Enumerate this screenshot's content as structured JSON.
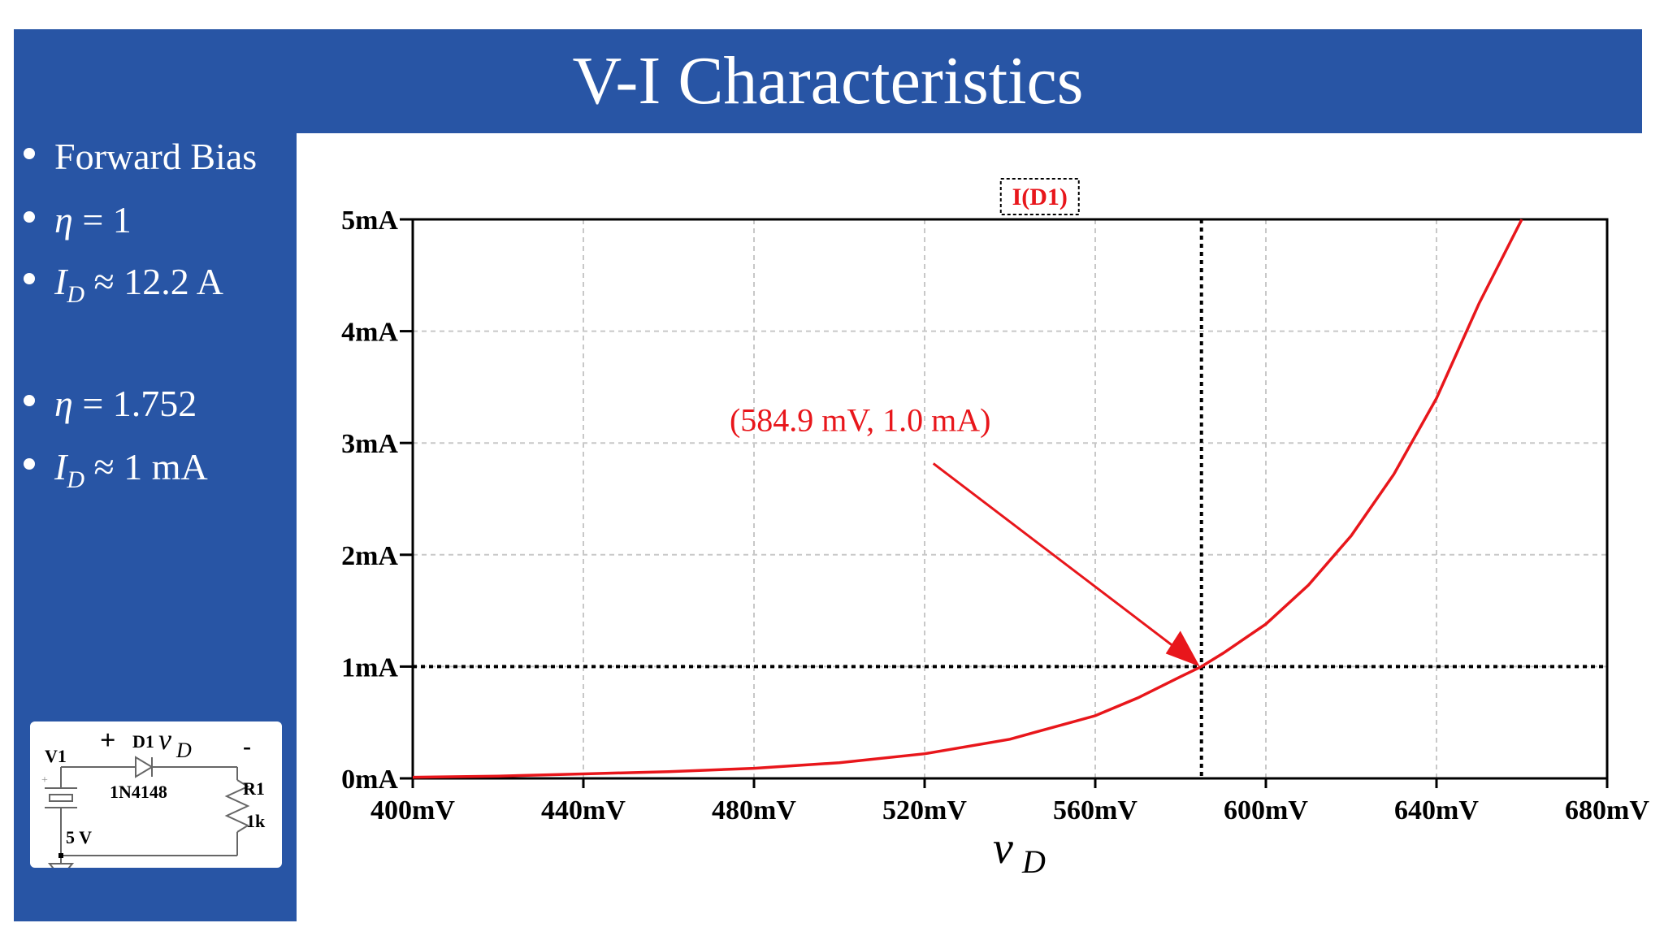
{
  "slide": {
    "title": "V-I Characteristics"
  },
  "sidebar": {
    "bullets": [
      {
        "text": "Forward Bias"
      },
      {
        "symbol": "η",
        "relation": "= 1"
      },
      {
        "symbol": "I",
        "sub": "D",
        "relation": "≈ 12.2 A"
      },
      {
        "symbol": "η",
        "relation": "= 1.752"
      },
      {
        "symbol": "I",
        "sub": "D",
        "relation": "≈ 1 mA"
      }
    ],
    "circuit": {
      "source_label": "V1",
      "source_value": "5 V",
      "diode_label": "D1",
      "diode_part": "1N4148",
      "voltage_symbol": "v",
      "voltage_sub": "D",
      "plus": "+",
      "minus": "-",
      "source_plus": "+",
      "resistor_label": "R1",
      "resistor_value": "1k"
    }
  },
  "chart_data": {
    "type": "line",
    "legend": "I(D1)",
    "xlabel_symbol": "v",
    "xlabel_sub": "D",
    "xlim": [
      400,
      680
    ],
    "ylim": [
      0,
      5
    ],
    "x_ticks": [
      400,
      440,
      480,
      520,
      560,
      600,
      640,
      680
    ],
    "x_tick_labels": [
      "400mV",
      "440mV",
      "480mV",
      "520mV",
      "560mV",
      "600mV",
      "640mV",
      "680mV"
    ],
    "y_ticks": [
      0,
      1,
      2,
      3,
      4,
      5
    ],
    "y_tick_labels": [
      "0mA",
      "1mA",
      "2mA",
      "3mA",
      "4mA",
      "5mA"
    ],
    "grid": true,
    "series": [
      {
        "color": "#e8161b",
        "x": [
          400,
          420,
          440,
          460,
          480,
          500,
          520,
          540,
          560,
          570,
          580,
          584.9,
          590,
          600,
          610,
          620,
          630,
          640,
          650,
          660
        ],
        "y": [
          0.01,
          0.02,
          0.04,
          0.06,
          0.09,
          0.14,
          0.22,
          0.35,
          0.56,
          0.72,
          0.91,
          1.0,
          1.12,
          1.38,
          1.73,
          2.17,
          2.72,
          3.4,
          4.25,
          5.0
        ]
      }
    ],
    "annotation": {
      "label": "(584.9 mV, 1.0 mA)",
      "x": 584.9,
      "y": 1.0,
      "color": "#e8161b"
    },
    "marker_lines_color": "#000000"
  }
}
